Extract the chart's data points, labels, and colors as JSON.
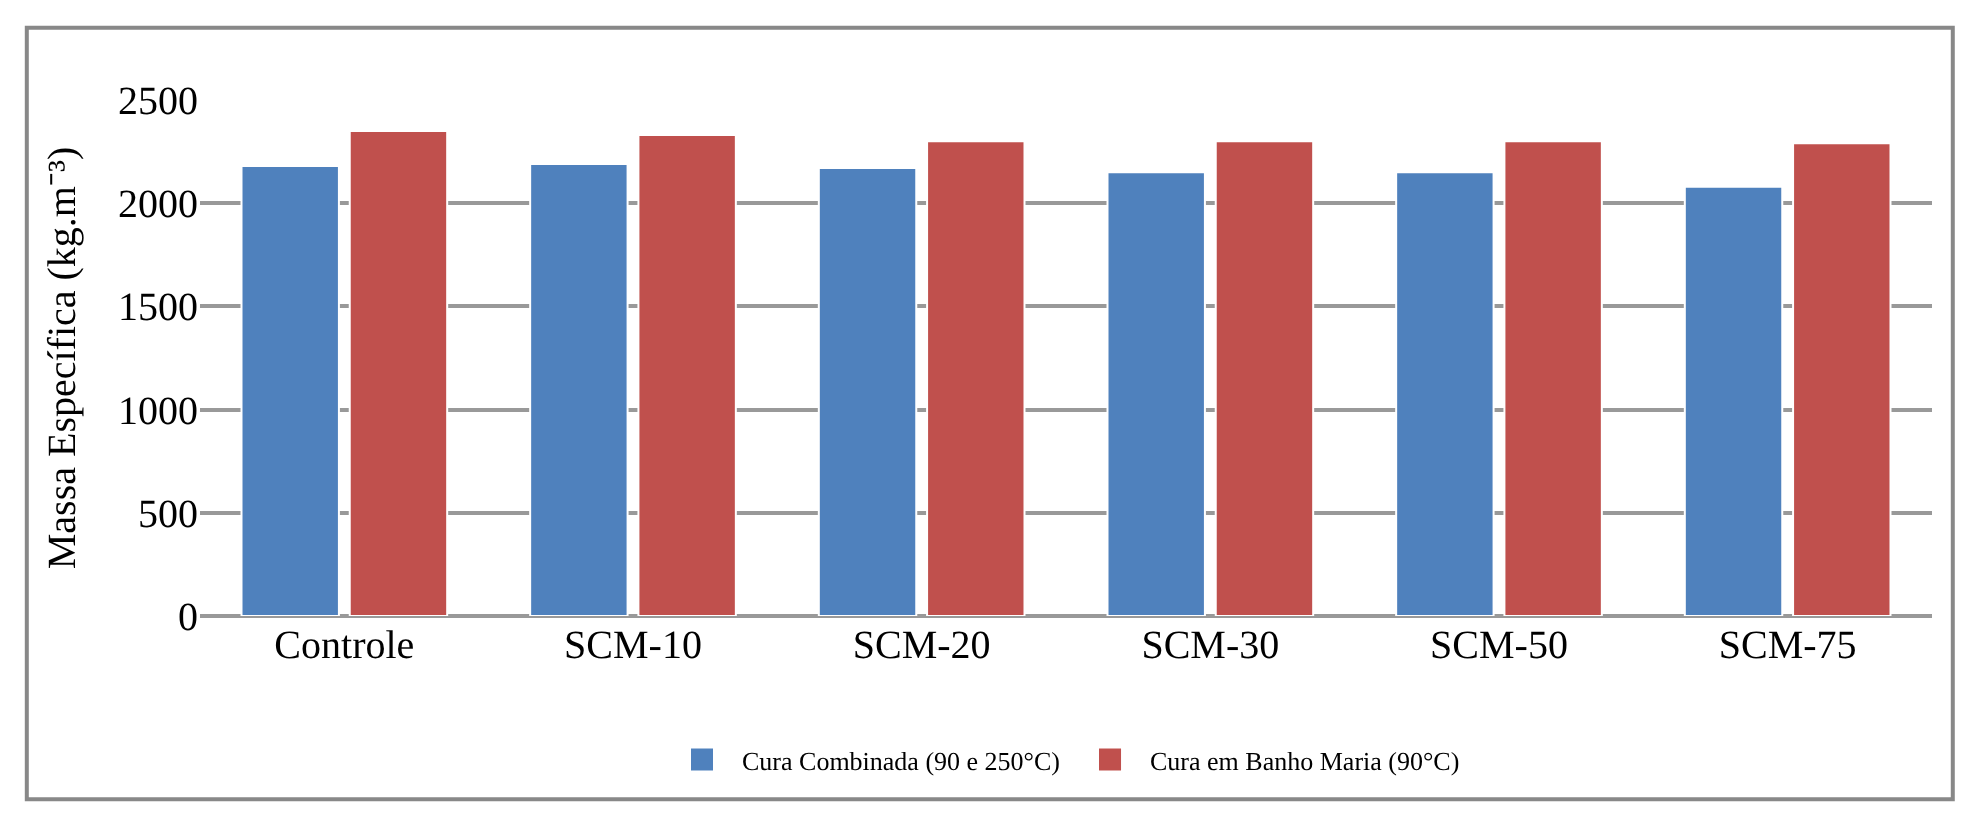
{
  "chart_data": {
    "type": "bar",
    "ylabel": "Massa Específica (kg.m⁻³)",
    "categories": [
      "Controle",
      "SCM-10",
      "SCM-20",
      "SCM-30",
      "SCM-50",
      "SCM-75"
    ],
    "series": [
      {
        "name": "Cura Combinada (90 e 250°C)",
        "color": "#4f81bd",
        "values": [
          2180,
          2190,
          2170,
          2150,
          2150,
          2080
        ]
      },
      {
        "name": "Cura em Banho Maria (90°C)",
        "color": "#c0504d",
        "values": [
          2350,
          2330,
          2300,
          2300,
          2300,
          2290
        ]
      }
    ],
    "ylim": [
      0,
      2500
    ],
    "yticks": [
      0,
      500,
      1000,
      1500,
      2000,
      2500
    ],
    "grid": "y",
    "legend": "bottom"
  }
}
